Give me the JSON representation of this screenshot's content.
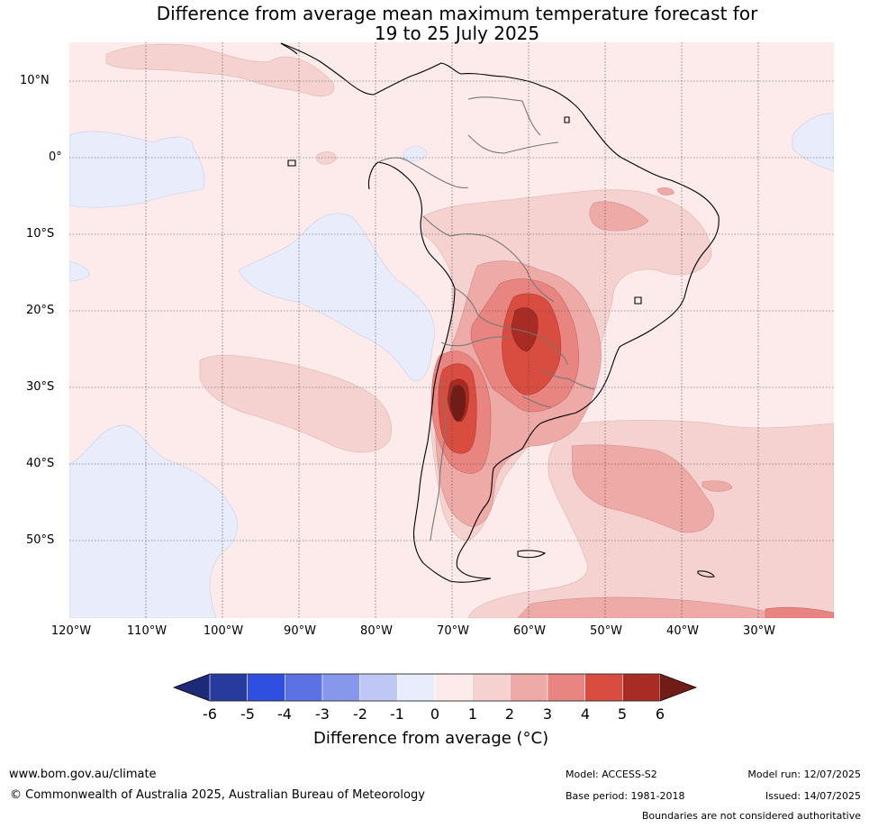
{
  "title_line1": "Difference from average mean maximum temperature forecast for",
  "title_line2": "19 to 25 July 2025",
  "lat_labels": [
    "10°N",
    "0°",
    "10°S",
    "20°S",
    "30°S",
    "40°S",
    "50°S"
  ],
  "lon_labels": [
    "120°W",
    "110°W",
    "100°W",
    "90°W",
    "80°W",
    "70°W",
    "60°W",
    "50°W",
    "40°W",
    "30°W"
  ],
  "colorbar": {
    "ticks": [
      "-6",
      "-5",
      "-4",
      "-3",
      "-2",
      "-1",
      "0",
      "1",
      "2",
      "3",
      "4",
      "5",
      "6"
    ],
    "colors": [
      "#273a9e",
      "#2f4fe0",
      "#5c72e4",
      "#8798ec",
      "#bfc8f4",
      "#e8ecfb",
      "#fcebea",
      "#f5d2d0",
      "#eeaaa7",
      "#e88580",
      "#d94c40",
      "#a82c23"
    ],
    "low_extend_color": "#1c2a78",
    "high_extend_color": "#721c17",
    "label": "Difference from average (°C)"
  },
  "footer": {
    "url": "www.bom.gov.au/climate",
    "copyright": "© Commonwealth of Australia 2025, Australian Bureau of Meteorology",
    "model": "Model: ACCESS-S2",
    "base_period": "Base period: 1981-2018",
    "model_run": "Model run: 12/07/2025",
    "issued": "Issued: 14/07/2025",
    "note": "Boundaries are not considered authoritative"
  }
}
